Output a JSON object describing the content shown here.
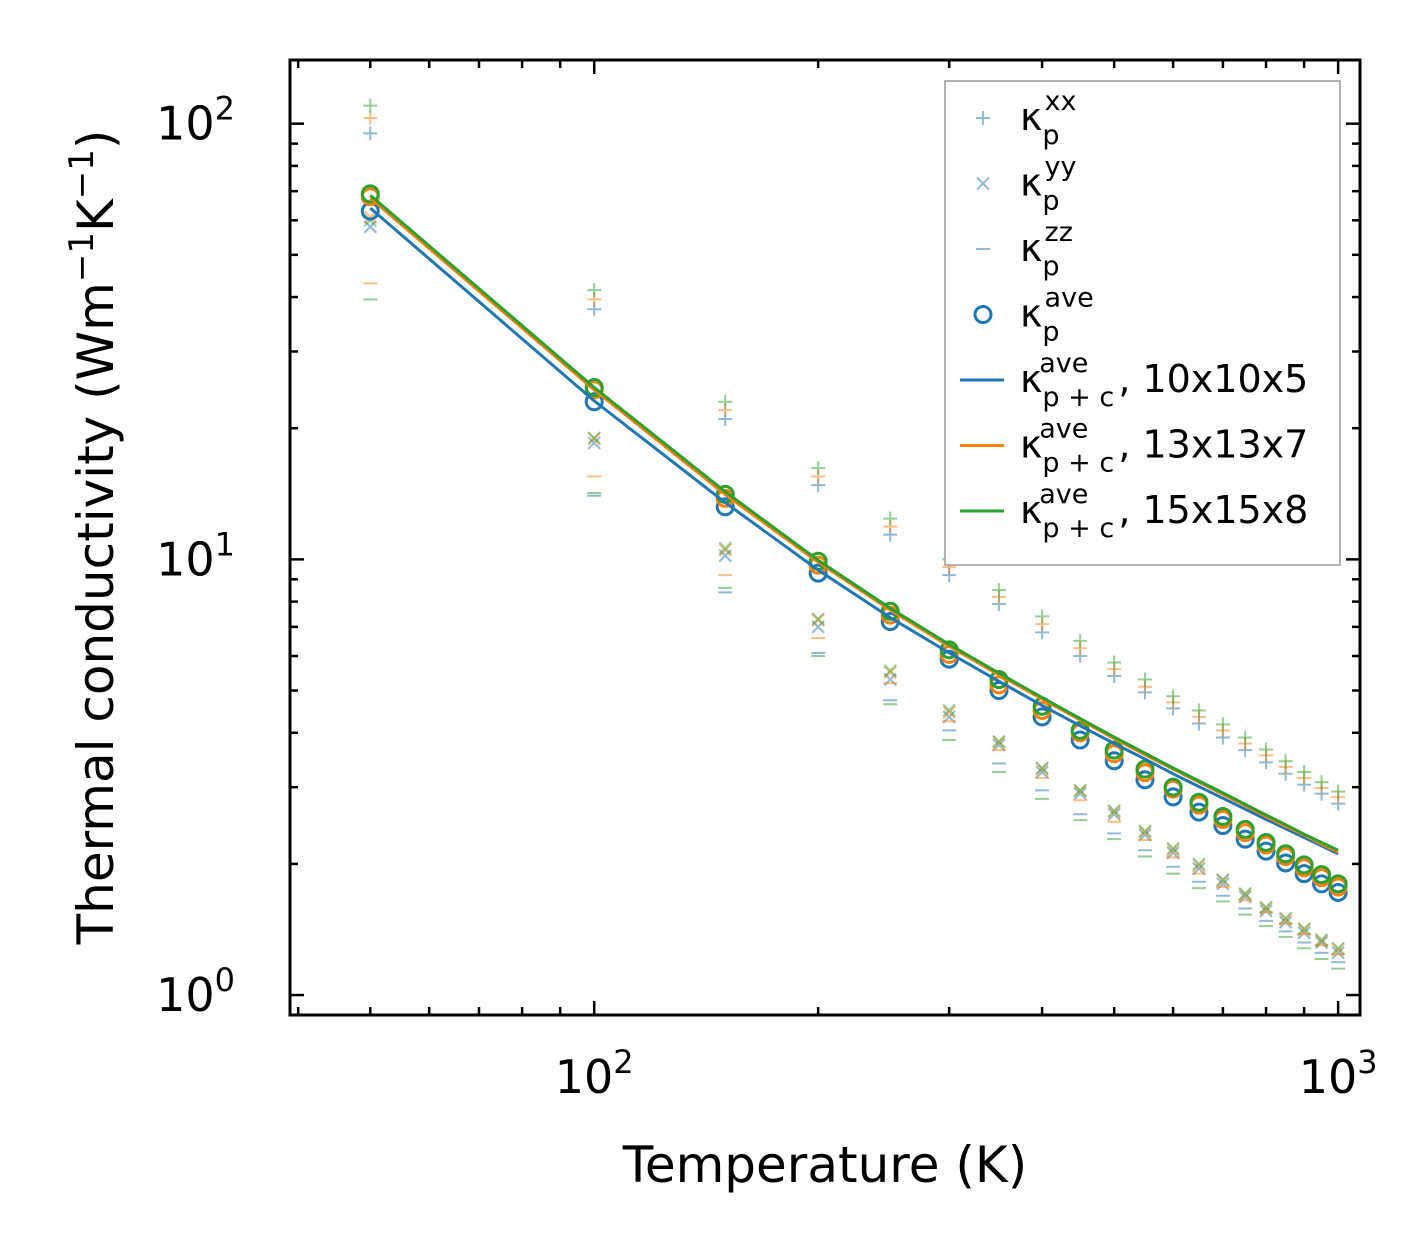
{
  "chart_data": {
    "type": "scatter",
    "title": "",
    "xlabel": "Temperature (K)",
    "ylabel_parts": [
      "Thermal conductivity (Wm",
      "−1",
      "K",
      "−1",
      ")"
    ],
    "xscale": "log",
    "yscale": "log",
    "xlim": [
      39,
      1070
    ],
    "ylim": [
      0.9,
      140
    ],
    "x_major_ticks": [
      {
        "value": 100,
        "base": "10",
        "exp": "2"
      },
      {
        "value": 1000,
        "base": "10",
        "exp": "3"
      }
    ],
    "y_major_ticks": [
      {
        "value": 1,
        "base": "10",
        "exp": "0"
      },
      {
        "value": 10,
        "base": "10",
        "exp": "1"
      },
      {
        "value": 100,
        "base": "10",
        "exp": "2"
      }
    ],
    "legend_position": "top-right",
    "legend": [
      {
        "key": "kxx",
        "marker": "+",
        "base": "κ",
        "sub": "p",
        "sup": "xx",
        "suffix": "",
        "color": "#1f77b4"
      },
      {
        "key": "kyy",
        "marker": "x",
        "base": "κ",
        "sub": "p",
        "sup": "yy",
        "suffix": "",
        "color": "#1f77b4"
      },
      {
        "key": "kzz",
        "marker": "_",
        "base": "κ",
        "sub": "p",
        "sup": "zz",
        "suffix": "",
        "color": "#1f77b4"
      },
      {
        "key": "kave",
        "marker": "o",
        "base": "κ",
        "sub": "p",
        "sup": "ave",
        "suffix": "",
        "color": "#1f77b4"
      },
      {
        "key": "g1",
        "marker": "line",
        "base": "κ",
        "sub": "p + c",
        "sup": "ave",
        "suffix": ", 10x10x5",
        "color": "#1f77b4"
      },
      {
        "key": "g2",
        "marker": "line",
        "base": "κ",
        "sub": "p + c",
        "sup": "ave",
        "suffix": ", 13x13x7",
        "color": "#ff7f0e"
      },
      {
        "key": "g3",
        "marker": "line",
        "base": "κ",
        "sub": "p + c",
        "sup": "ave",
        "suffix": ", 15x15x8",
        "color": "#2ca02c"
      }
    ],
    "x": [
      50,
      100,
      150,
      200,
      250,
      300,
      350,
      400,
      450,
      500,
      550,
      600,
      650,
      700,
      750,
      800,
      850,
      900,
      950,
      1000
    ],
    "grids": [
      {
        "name": "10x10x5",
        "color": "#1f77b4",
        "kxx": [
          95,
          37.5,
          21,
          14.8,
          11.4,
          9.2,
          7.9,
          6.8,
          6.0,
          5.4,
          4.95,
          4.55,
          4.2,
          3.9,
          3.65,
          3.42,
          3.22,
          3.04,
          2.9,
          2.75
        ],
        "kyy": [
          58,
          18.5,
          10.2,
          7.0,
          5.3,
          4.35,
          3.75,
          3.25,
          2.9,
          2.6,
          2.33,
          2.12,
          1.95,
          1.8,
          1.68,
          1.56,
          1.47,
          1.39,
          1.32,
          1.25
        ],
        "kzz": [
          null,
          14,
          8.4,
          6.1,
          4.75,
          4.05,
          3.4,
          2.95,
          2.6,
          2.35,
          2.15,
          1.97,
          1.82,
          1.69,
          1.58,
          1.48,
          1.4,
          1.32,
          1.25,
          1.19
        ],
        "kave": [
          63,
          23,
          13.2,
          9.3,
          7.2,
          5.9,
          5.0,
          4.35,
          3.85,
          3.45,
          3.12,
          2.85,
          2.63,
          2.45,
          2.28,
          2.14,
          2.01,
          1.9,
          1.8,
          1.72
        ],
        "curve": [
          64,
          23.1,
          13.5,
          9.45,
          7.35,
          6.1,
          5.25,
          4.62,
          4.15,
          3.78,
          3.48,
          3.22,
          3.01,
          2.83,
          2.67,
          2.53,
          2.41,
          2.3,
          2.2,
          2.11
        ]
      },
      {
        "name": "13x13x7",
        "color": "#ff7f0e",
        "kxx": [
          103,
          39.5,
          22,
          15.5,
          11.9,
          9.6,
          8.2,
          7.1,
          6.25,
          5.6,
          5.1,
          4.7,
          4.35,
          4.05,
          3.78,
          3.55,
          3.34,
          3.15,
          2.99,
          2.85
        ],
        "kyy": [
          61,
          18.9,
          10.5,
          7.25,
          5.5,
          4.45,
          3.8,
          3.3,
          2.94,
          2.63,
          2.36,
          2.15,
          1.98,
          1.83,
          1.7,
          1.58,
          1.49,
          1.41,
          1.33,
          1.27
        ],
        "kzz": [
          43,
          15.5,
          9.2,
          6.6,
          5.2,
          4.25,
          3.65,
          3.15,
          2.8,
          2.5,
          2.27,
          2.07,
          1.9,
          1.77,
          1.65,
          1.55,
          1.46,
          1.38,
          1.3,
          1.24
        ],
        "kave": [
          68,
          24.5,
          13.8,
          9.7,
          7.45,
          6.05,
          5.15,
          4.5,
          4.0,
          3.58,
          3.24,
          2.97,
          2.73,
          2.53,
          2.36,
          2.21,
          2.08,
          1.96,
          1.86,
          1.77
        ],
        "curve": [
          67.5,
          24.5,
          14.1,
          9.85,
          7.65,
          6.32,
          5.43,
          4.78,
          4.28,
          3.88,
          3.56,
          3.3,
          3.08,
          2.89,
          2.72,
          2.57,
          2.44,
          2.33,
          2.22,
          2.13
        ]
      },
      {
        "name": "15x15x8",
        "color": "#2ca02c",
        "kxx": [
          110,
          41.5,
          23,
          16.2,
          12.4,
          10.0,
          8.5,
          7.4,
          6.5,
          5.8,
          5.3,
          4.85,
          4.5,
          4.18,
          3.9,
          3.66,
          3.44,
          3.25,
          3.08,
          2.93
        ],
        "kyy": [
          60,
          19.0,
          10.6,
          7.3,
          5.55,
          4.5,
          3.82,
          3.32,
          2.95,
          2.65,
          2.38,
          2.17,
          2.0,
          1.84,
          1.71,
          1.59,
          1.5,
          1.42,
          1.34,
          1.28
        ],
        "kzz": [
          39.5,
          14.2,
          8.6,
          6.0,
          4.65,
          3.85,
          3.25,
          2.82,
          2.52,
          2.28,
          2.08,
          1.9,
          1.76,
          1.64,
          1.53,
          1.44,
          1.36,
          1.28,
          1.21,
          1.15
        ],
        "kave": [
          69,
          24.8,
          14.1,
          9.9,
          7.6,
          6.2,
          5.3,
          4.6,
          4.05,
          3.65,
          3.3,
          3.0,
          2.77,
          2.57,
          2.4,
          2.24,
          2.11,
          1.99,
          1.89,
          1.8
        ],
        "curve": [
          68.5,
          24.8,
          14.3,
          9.95,
          7.72,
          6.38,
          5.48,
          4.82,
          4.31,
          3.91,
          3.59,
          3.32,
          3.1,
          2.91,
          2.74,
          2.59,
          2.46,
          2.34,
          2.24,
          2.15
        ]
      }
    ]
  }
}
